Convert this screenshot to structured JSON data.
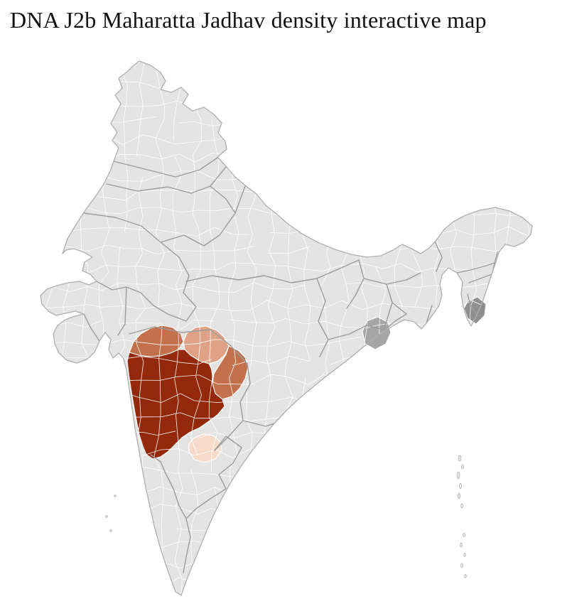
{
  "title": "DNA J2b Maharatta Jadhav density interactive map",
  "map": {
    "type": "choropleth",
    "colors": {
      "land": "#e4e4e4",
      "district_border": "#ffffff",
      "state_border": "#9c9c9c",
      "coastline": "#afafaf",
      "density_high": "#93290a",
      "density_medium": "#c3714d",
      "density_low": "#dfa287",
      "density_very_low": "#f6dbcb",
      "no_data": "#a5a5a5",
      "no_data_dark": "#8f8f8f"
    }
  }
}
